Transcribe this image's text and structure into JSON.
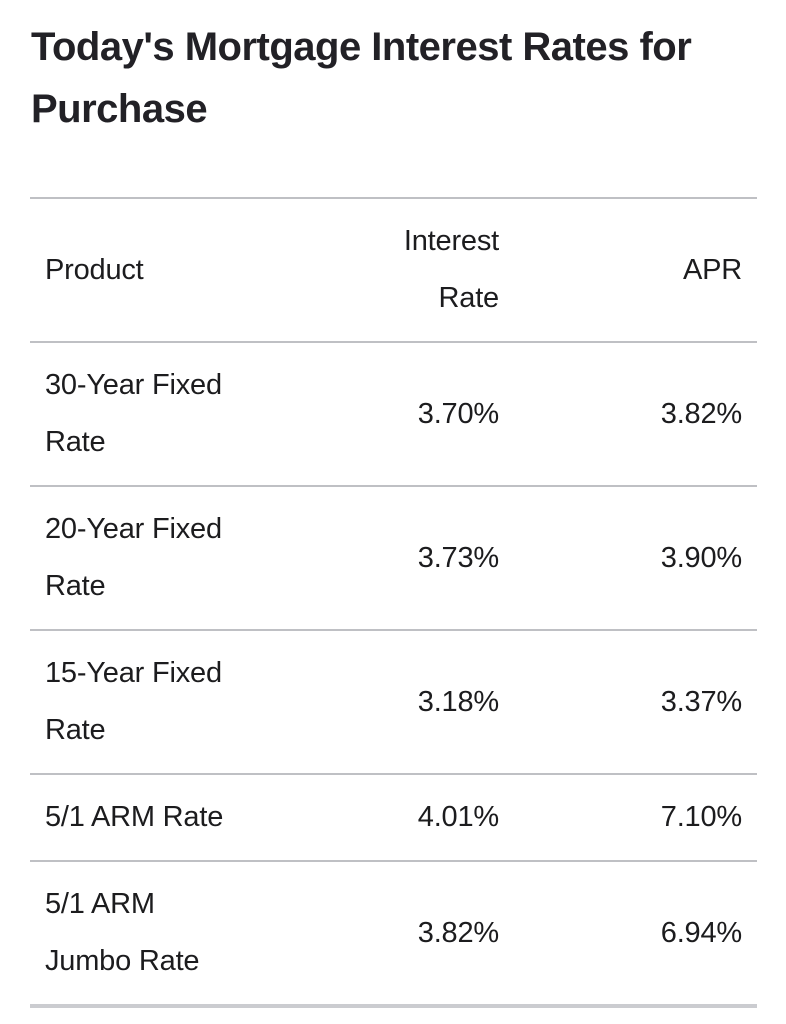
{
  "title": "Today's Mortgage Interest Rates for Purchase",
  "colors": {
    "text": "#1c1c1e",
    "title_text": "#222126",
    "divider": "#bfc0c4",
    "bottom_border": "#cbccd0",
    "background": "#ffffff"
  },
  "table": {
    "columns": [
      {
        "label": "Product"
      },
      {
        "label": "Interest\nRate"
      },
      {
        "label": "APR"
      }
    ],
    "rows": [
      {
        "product": "30-Year Fixed\nRate",
        "interest_rate": "3.70%",
        "apr": "3.82%"
      },
      {
        "product": "20-Year Fixed\nRate",
        "interest_rate": "3.73%",
        "apr": "3.90%"
      },
      {
        "product": "15-Year Fixed\nRate",
        "interest_rate": "3.18%",
        "apr": "3.37%"
      },
      {
        "product": "5/1 ARM Rate",
        "interest_rate": "4.01%",
        "apr": "7.10%"
      },
      {
        "product": "5/1 ARM\nJumbo Rate",
        "interest_rate": "3.82%",
        "apr": "6.94%"
      }
    ]
  },
  "chart_data": {
    "type": "table",
    "title": "Today's Mortgage Interest Rates for Purchase",
    "columns": [
      "Product",
      "Interest Rate",
      "APR"
    ],
    "rows": [
      [
        "30-Year Fixed Rate",
        "3.70%",
        "3.82%"
      ],
      [
        "20-Year Fixed Rate",
        "3.73%",
        "3.90%"
      ],
      [
        "15-Year Fixed Rate",
        "3.18%",
        "3.37%"
      ],
      [
        "5/1 ARM Rate",
        "4.01%",
        "7.10%"
      ],
      [
        "5/1 ARM Jumbo Rate",
        "3.82%",
        "6.94%"
      ]
    ]
  }
}
